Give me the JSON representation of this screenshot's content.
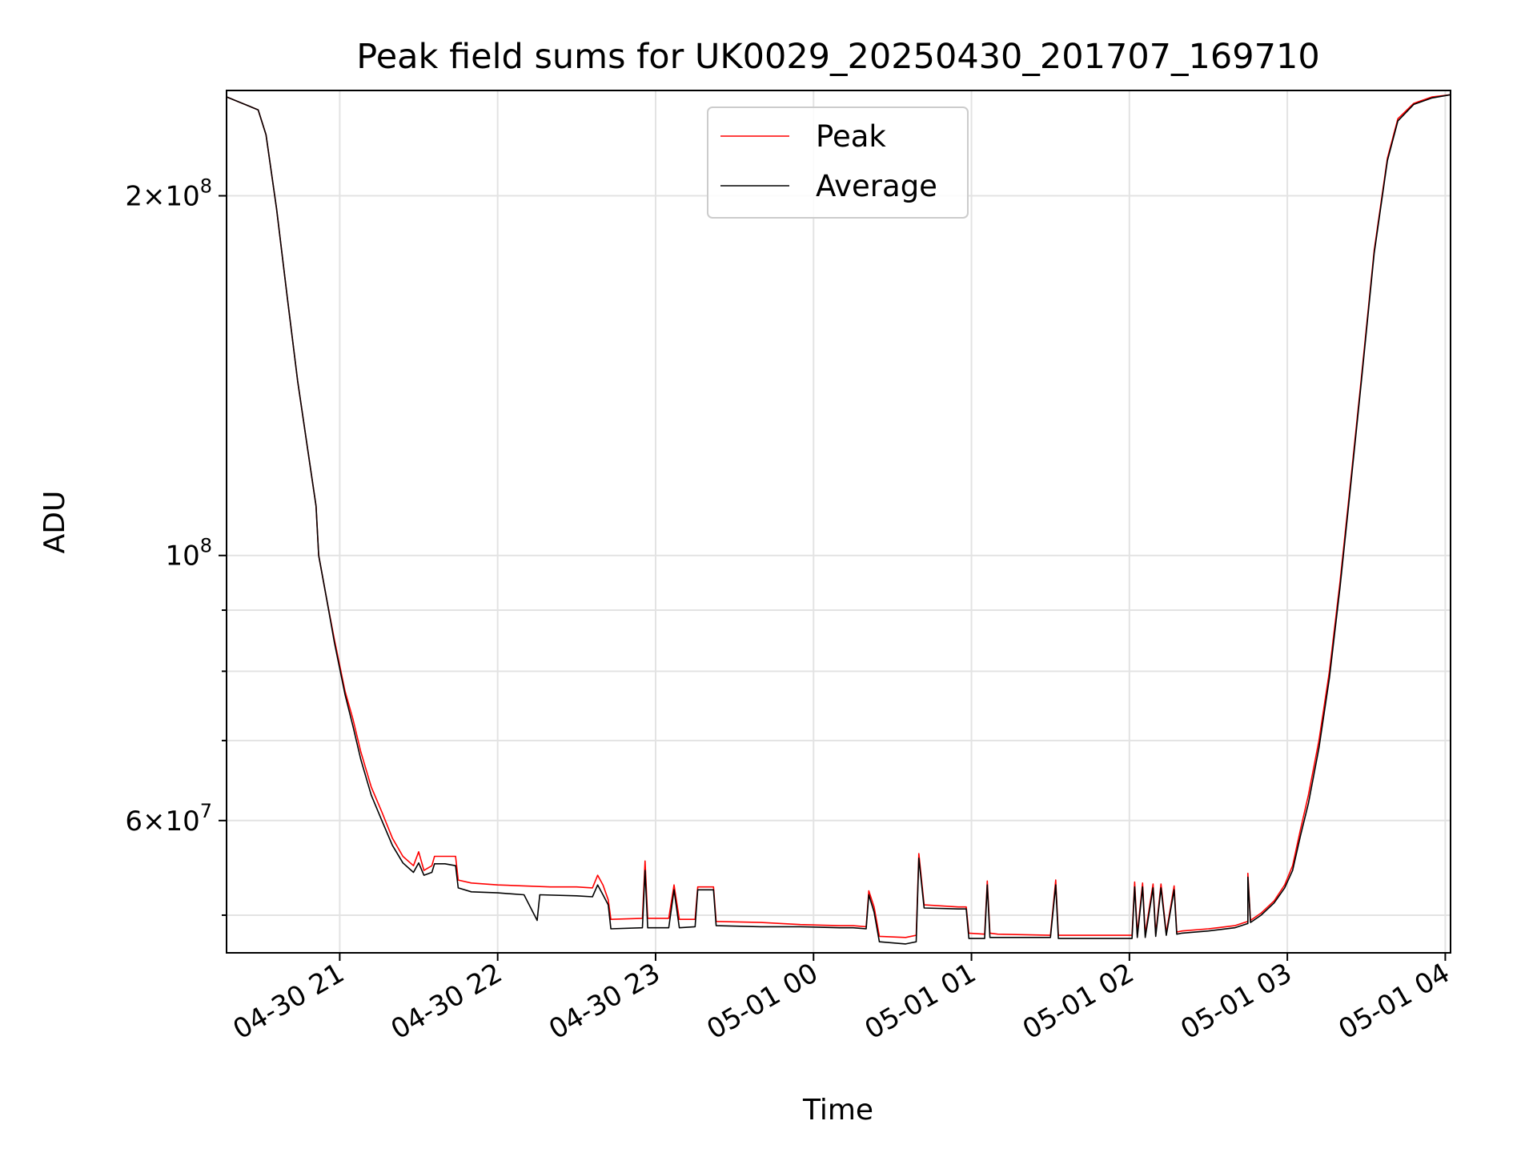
{
  "chart_data": {
    "type": "line",
    "title": "Peak field sums for UK0029_20250430_201707_169710",
    "xlabel": "Time",
    "ylabel": "ADU",
    "yscale": "log",
    "grid": true,
    "legend_position": "upper center",
    "xlim": [
      "2025-04-30 20:17",
      "2025-05-01 04:02"
    ],
    "ylim": [
      46500000,
      245000000
    ],
    "x_ticks": [
      "04-30 21",
      "04-30 22",
      "04-30 23",
      "05-01 00",
      "05-01 01",
      "05-01 02",
      "05-01 03",
      "05-01 04"
    ],
    "y_tick_labels": [
      {
        "value": 200000000,
        "mantissa": "2",
        "exponent": "8"
      },
      {
        "value": 100000000,
        "mantissa": "",
        "exponent": "8"
      },
      {
        "value": 60000000,
        "mantissa": "6",
        "exponent": "7"
      }
    ],
    "series": [
      {
        "name": "Peak",
        "color": "#ff0000",
        "points": [
          [
            "20:17",
            242000000
          ],
          [
            "20:25",
            238000000
          ],
          [
            "20:29",
            236000000
          ],
          [
            "20:32",
            225000000
          ],
          [
            "20:36",
            195000000
          ],
          [
            "20:40",
            165000000
          ],
          [
            "20:44",
            140000000
          ],
          [
            "20:48",
            122000000
          ],
          [
            "20:51",
            110000000
          ],
          [
            "20:52",
            100000000
          ],
          [
            "20:55",
            92000000
          ],
          [
            "20:58",
            85000000
          ],
          [
            "21:02",
            77000000
          ],
          [
            "21:05",
            73000000
          ],
          [
            "21:08",
            68500000
          ],
          [
            "21:12",
            64000000
          ],
          [
            "21:16",
            61000000
          ],
          [
            "21:20",
            58000000
          ],
          [
            "21:24",
            56000000
          ],
          [
            "21:28",
            55000000
          ],
          [
            "21:30",
            56500000
          ],
          [
            "21:32",
            54500000
          ],
          [
            "21:35",
            55000000
          ],
          [
            "21:36",
            56000000
          ],
          [
            "21:40",
            56000000
          ],
          [
            "21:44",
            56000000
          ],
          [
            "21:45",
            53500000
          ],
          [
            "21:50",
            53200000
          ],
          [
            "22:00",
            53000000
          ],
          [
            "22:10",
            52900000
          ],
          [
            "22:20",
            52800000
          ],
          [
            "22:30",
            52800000
          ],
          [
            "22:36",
            52700000
          ],
          [
            "22:38",
            54000000
          ],
          [
            "22:40",
            53000000
          ],
          [
            "22:42",
            51500000
          ],
          [
            "22:43",
            49600000
          ],
          [
            "22:55",
            49700000
          ],
          [
            "22:56",
            55500000
          ],
          [
            "22:57",
            49700000
          ],
          [
            "23:05",
            49700000
          ],
          [
            "23:07",
            53000000
          ],
          [
            "23:09",
            49600000
          ],
          [
            "23:15",
            49600000
          ],
          [
            "23:16",
            52800000
          ],
          [
            "23:22",
            52800000
          ],
          [
            "23:23",
            49400000
          ],
          [
            "23:40",
            49300000
          ],
          [
            "23:55",
            49100000
          ],
          [
            "00:10",
            49000000
          ],
          [
            "00:15",
            49000000
          ],
          [
            "00:20",
            48900000
          ],
          [
            "00:21",
            52400000
          ],
          [
            "00:23",
            50800000
          ],
          [
            "00:25",
            48000000
          ],
          [
            "00:35",
            47900000
          ],
          [
            "00:39",
            48100000
          ],
          [
            "00:40",
            56300000
          ],
          [
            "00:42",
            51000000
          ],
          [
            "00:55",
            50800000
          ],
          [
            "00:58",
            50800000
          ],
          [
            "00:59",
            48300000
          ],
          [
            "01:05",
            48200000
          ],
          [
            "01:06",
            53400000
          ],
          [
            "01:07",
            48300000
          ],
          [
            "01:10",
            48200000
          ],
          [
            "01:30",
            48100000
          ],
          [
            "01:32",
            53500000
          ],
          [
            "01:33",
            48100000
          ],
          [
            "01:50",
            48100000
          ],
          [
            "02:01",
            48100000
          ],
          [
            "02:02",
            53300000
          ],
          [
            "02:03",
            48200000
          ],
          [
            "02:05",
            53200000
          ],
          [
            "02:06",
            48200000
          ],
          [
            "02:09",
            53100000
          ],
          [
            "02:10",
            48200000
          ],
          [
            "02:12",
            53100000
          ],
          [
            "02:14",
            48300000
          ],
          [
            "02:17",
            52900000
          ],
          [
            "02:18",
            48400000
          ],
          [
            "02:20",
            48500000
          ],
          [
            "02:30",
            48700000
          ],
          [
            "02:40",
            49000000
          ],
          [
            "02:45",
            49400000
          ],
          [
            "02:45",
            54200000
          ],
          [
            "02:46",
            49500000
          ],
          [
            "02:50",
            50200000
          ],
          [
            "02:55",
            51400000
          ],
          [
            "02:59",
            53000000
          ],
          [
            "03:02",
            55000000
          ],
          [
            "03:05",
            59000000
          ],
          [
            "03:08",
            63000000
          ],
          [
            "03:12",
            70000000
          ],
          [
            "03:16",
            80000000
          ],
          [
            "03:20",
            95000000
          ],
          [
            "03:24",
            115000000
          ],
          [
            "03:28",
            140000000
          ],
          [
            "03:33",
            180000000
          ],
          [
            "03:38",
            215000000
          ],
          [
            "03:42",
            232000000
          ],
          [
            "03:48",
            239000000
          ],
          [
            "03:55",
            242000000
          ],
          [
            "04:02",
            243000000
          ]
        ]
      },
      {
        "name": "Average",
        "color": "#000000",
        "points": [
          [
            "20:17",
            242000000
          ],
          [
            "20:25",
            238000000
          ],
          [
            "20:29",
            236000000
          ],
          [
            "20:32",
            225000000
          ],
          [
            "20:36",
            195000000
          ],
          [
            "20:40",
            165000000
          ],
          [
            "20:44",
            140000000
          ],
          [
            "20:48",
            122000000
          ],
          [
            "20:51",
            110000000
          ],
          [
            "20:52",
            100000000
          ],
          [
            "20:55",
            92000000
          ],
          [
            "20:58",
            84500000
          ],
          [
            "21:02",
            76500000
          ],
          [
            "21:05",
            72000000
          ],
          [
            "21:08",
            67500000
          ],
          [
            "21:12",
            63000000
          ],
          [
            "21:16",
            60000000
          ],
          [
            "21:20",
            57200000
          ],
          [
            "21:24",
            55300000
          ],
          [
            "21:28",
            54300000
          ],
          [
            "21:30",
            55300000
          ],
          [
            "21:32",
            54000000
          ],
          [
            "21:35",
            54300000
          ],
          [
            "21:36",
            55200000
          ],
          [
            "21:40",
            55200000
          ],
          [
            "21:44",
            55000000
          ],
          [
            "21:45",
            52700000
          ],
          [
            "21:50",
            52300000
          ],
          [
            "22:00",
            52200000
          ],
          [
            "22:10",
            52000000
          ],
          [
            "22:15",
            49500000
          ],
          [
            "22:16",
            52000000
          ],
          [
            "22:30",
            51900000
          ],
          [
            "22:36",
            51800000
          ],
          [
            "22:38",
            53000000
          ],
          [
            "22:40",
            52000000
          ],
          [
            "22:42",
            51000000
          ],
          [
            "22:43",
            48700000
          ],
          [
            "22:55",
            48800000
          ],
          [
            "22:56",
            54500000
          ],
          [
            "22:57",
            48800000
          ],
          [
            "23:05",
            48800000
          ],
          [
            "23:07",
            52500000
          ],
          [
            "23:09",
            48800000
          ],
          [
            "23:15",
            48900000
          ],
          [
            "23:16",
            52500000
          ],
          [
            "23:22",
            52500000
          ],
          [
            "23:23",
            49000000
          ],
          [
            "23:40",
            48900000
          ],
          [
            "23:55",
            48900000
          ],
          [
            "00:10",
            48800000
          ],
          [
            "00:15",
            48800000
          ],
          [
            "00:20",
            48700000
          ],
          [
            "00:21",
            52000000
          ],
          [
            "00:23",
            50300000
          ],
          [
            "00:25",
            47500000
          ],
          [
            "00:35",
            47300000
          ],
          [
            "00:39",
            47500000
          ],
          [
            "00:40",
            55800000
          ],
          [
            "00:42",
            50700000
          ],
          [
            "00:55",
            50600000
          ],
          [
            "00:58",
            50600000
          ],
          [
            "00:59",
            47800000
          ],
          [
            "01:05",
            47800000
          ],
          [
            "01:06",
            53000000
          ],
          [
            "01:07",
            47900000
          ],
          [
            "01:10",
            47900000
          ],
          [
            "01:30",
            47900000
          ],
          [
            "01:32",
            53000000
          ],
          [
            "01:33",
            47800000
          ],
          [
            "01:50",
            47800000
          ],
          [
            "02:01",
            47800000
          ],
          [
            "02:02",
            52800000
          ],
          [
            "02:03",
            47900000
          ],
          [
            "02:05",
            52800000
          ],
          [
            "02:06",
            47900000
          ],
          [
            "02:09",
            52700000
          ],
          [
            "02:10",
            48000000
          ],
          [
            "02:12",
            52700000
          ],
          [
            "02:14",
            48100000
          ],
          [
            "02:17",
            52500000
          ],
          [
            "02:18",
            48200000
          ],
          [
            "02:20",
            48300000
          ],
          [
            "02:30",
            48500000
          ],
          [
            "02:40",
            48800000
          ],
          [
            "02:45",
            49200000
          ],
          [
            "02:45",
            53800000
          ],
          [
            "02:46",
            49300000
          ],
          [
            "02:50",
            50000000
          ],
          [
            "02:55",
            51200000
          ],
          [
            "02:59",
            52700000
          ],
          [
            "03:02",
            54500000
          ],
          [
            "03:05",
            58300000
          ],
          [
            "03:08",
            62000000
          ],
          [
            "03:12",
            69000000
          ],
          [
            "03:16",
            79000000
          ],
          [
            "03:20",
            94000000
          ],
          [
            "03:24",
            114000000
          ],
          [
            "03:28",
            139000000
          ],
          [
            "03:33",
            179000000
          ],
          [
            "03:38",
            214000000
          ],
          [
            "03:42",
            231000000
          ],
          [
            "03:48",
            238500000
          ],
          [
            "03:55",
            241500000
          ],
          [
            "04:02",
            243000000
          ]
        ]
      }
    ]
  }
}
